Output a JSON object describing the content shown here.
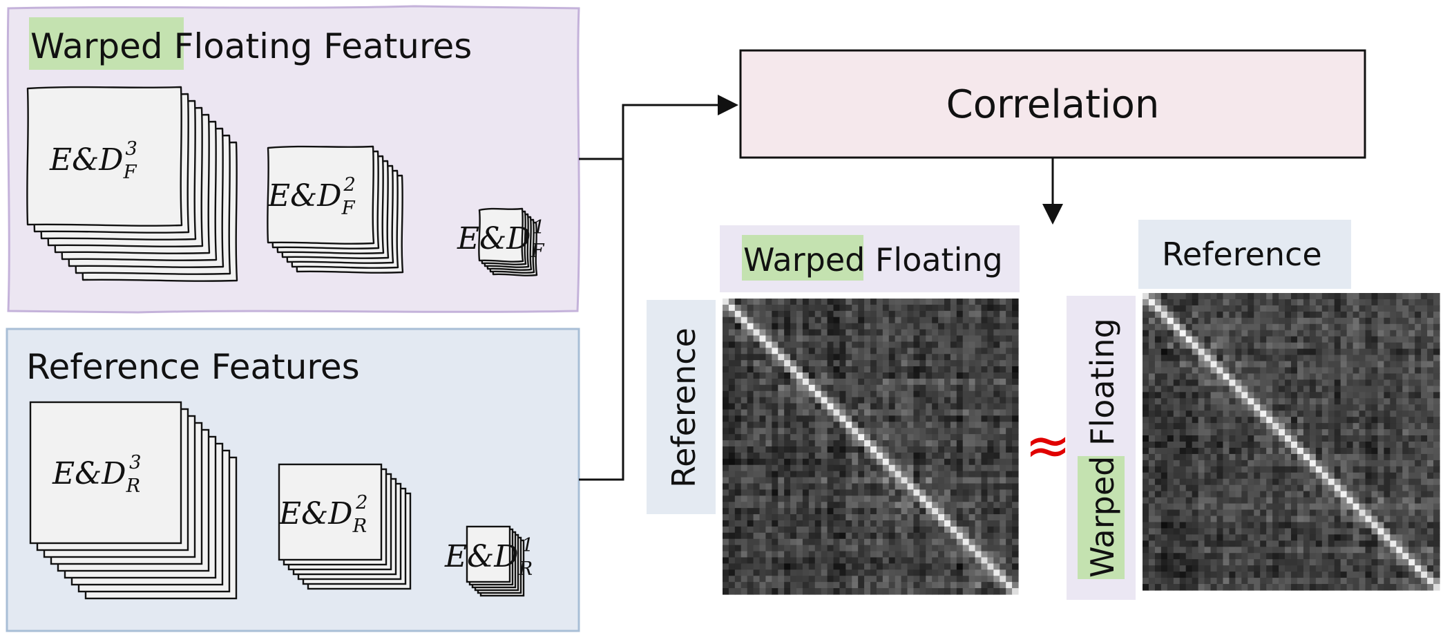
{
  "colors": {
    "warped_panel_fill": "#ece6f2",
    "warped_panel_stroke": "#c4b2da",
    "reference_panel_fill": "#e3e9f2",
    "reference_panel_stroke": "#a8bed6",
    "correlation_fill": "#f5e8ec",
    "highlight_green": "#c4e2b0",
    "approx_red": "#e00000",
    "label_lavender": "#ebe7f3",
    "label_blue": "#e4eaf2"
  },
  "warped_panel": {
    "title_highlight": "Warped",
    "title_rest": " Floating Features",
    "features": [
      {
        "base": "E&D",
        "sub": "F",
        "sup": "3"
      },
      {
        "base": "E&D",
        "sub": "F",
        "sup": "2"
      },
      {
        "base": "E&D",
        "sub": "F",
        "sup": "1"
      }
    ]
  },
  "reference_panel": {
    "title": "Reference Features",
    "features": [
      {
        "base": "E&D",
        "sub": "R",
        "sup": "3"
      },
      {
        "base": "E&D",
        "sub": "R",
        "sup": "2"
      },
      {
        "base": "E&D",
        "sub": "R",
        "sup": "1"
      }
    ]
  },
  "correlation": {
    "label": "Correlation"
  },
  "matrix_left": {
    "top_label_highlight": "Warped",
    "top_label_rest": " Floating",
    "side_label": "Reference"
  },
  "approx_symbol": "≈",
  "matrix_right": {
    "top_label": "Reference",
    "side_label_highlight": "Warped",
    "side_label_rest": " Floating"
  }
}
